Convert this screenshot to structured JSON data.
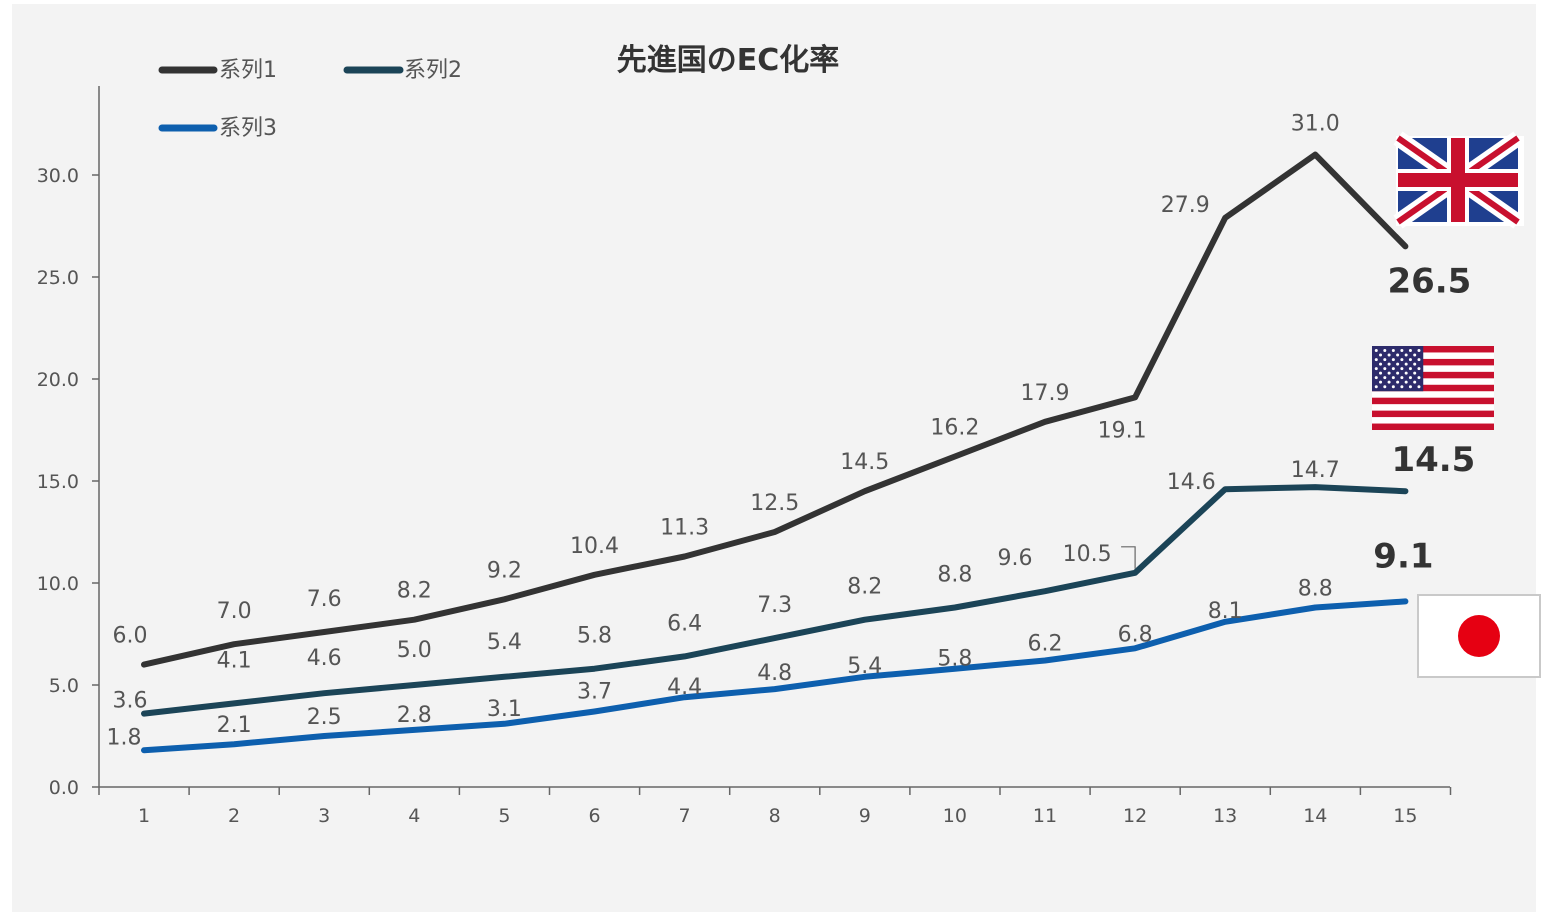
{
  "chart_data": {
    "type": "line",
    "title": "先進国のEC化率",
    "xlabel": "",
    "ylabel": "",
    "x": [
      1,
      2,
      3,
      4,
      5,
      6,
      7,
      8,
      9,
      10,
      11,
      12,
      13,
      14,
      15
    ],
    "ylim": [
      0,
      30
    ],
    "yticks": [
      "0.0",
      "5.0",
      "10.0",
      "15.0",
      "20.0",
      "25.0",
      "30.0"
    ],
    "grid": false,
    "legend_position": "top-left",
    "series": [
      {
        "name": "系列1",
        "color": "#333333",
        "values": [
          6.0,
          7.0,
          7.6,
          8.2,
          9.2,
          10.4,
          11.3,
          12.5,
          14.5,
          16.2,
          17.9,
          19.1,
          27.9,
          31.0,
          26.5
        ],
        "labels": [
          "6.0",
          "7.0",
          "7.6",
          "8.2",
          "9.2",
          "10.4",
          "11.3",
          "12.5",
          "14.5",
          "16.2",
          "17.9",
          "19.1",
          "27.9",
          "31.0",
          "26.5"
        ],
        "flag": "uk-flag-icon"
      },
      {
        "name": "系列2",
        "color": "#1b4457",
        "values": [
          3.6,
          4.1,
          4.6,
          5.0,
          5.4,
          5.8,
          6.4,
          7.3,
          8.2,
          8.8,
          9.6,
          10.5,
          14.6,
          14.7,
          14.5
        ],
        "labels": [
          "3.6",
          "4.1",
          "4.6",
          "5.0",
          "5.4",
          "5.8",
          "6.4",
          "7.3",
          "8.2",
          "8.8",
          "9.6",
          "10.5",
          "14.6",
          "14.7",
          "14.5"
        ],
        "flag": "us-flag-icon"
      },
      {
        "name": "系列3",
        "color": "#0d5fae",
        "values": [
          1.8,
          2.1,
          2.5,
          2.8,
          3.1,
          3.7,
          4.4,
          4.8,
          5.4,
          5.8,
          6.2,
          6.8,
          8.1,
          8.8,
          9.1
        ],
        "labels": [
          "1.8",
          "2.1",
          "2.5",
          "2.8",
          "3.1",
          "3.7",
          "4.4",
          "4.8",
          "5.4",
          "5.8",
          "6.2",
          "6.8",
          "8.1",
          "8.8",
          "9.1"
        ],
        "flag": "japan-flag-icon"
      }
    ]
  }
}
